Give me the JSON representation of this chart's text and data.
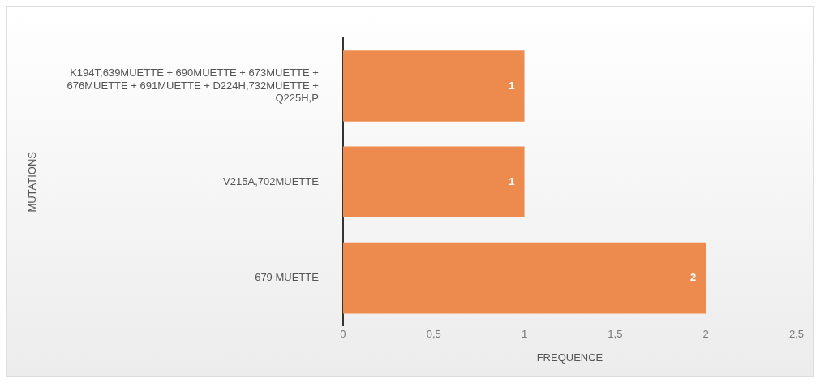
{
  "chart_data": {
    "type": "bar",
    "orientation": "horizontal",
    "categories": [
      "K194T;639MUETTE + 690MUETTE + 673MUETTE + 676MUETTE + 691MUETTE + D224H,732MUETTE + Q225H,P",
      "V215A,702MUETTE",
      "679 MUETTE"
    ],
    "values": [
      1,
      1,
      2
    ],
    "color": "#ed8b4e",
    "xlim": [
      0,
      2.5
    ],
    "xticks": [
      0,
      {
        "value": 0.5,
        "label": "0,5"
      },
      1,
      {
        "value": 1.5,
        "label": "1,5"
      },
      2,
      {
        "value": 2.5,
        "label": "2,5"
      }
    ],
    "xlabel": "FREQUENCE",
    "ylabel": "MUTATIONS",
    "data_labels": true,
    "grid": false,
    "legend": false
  }
}
